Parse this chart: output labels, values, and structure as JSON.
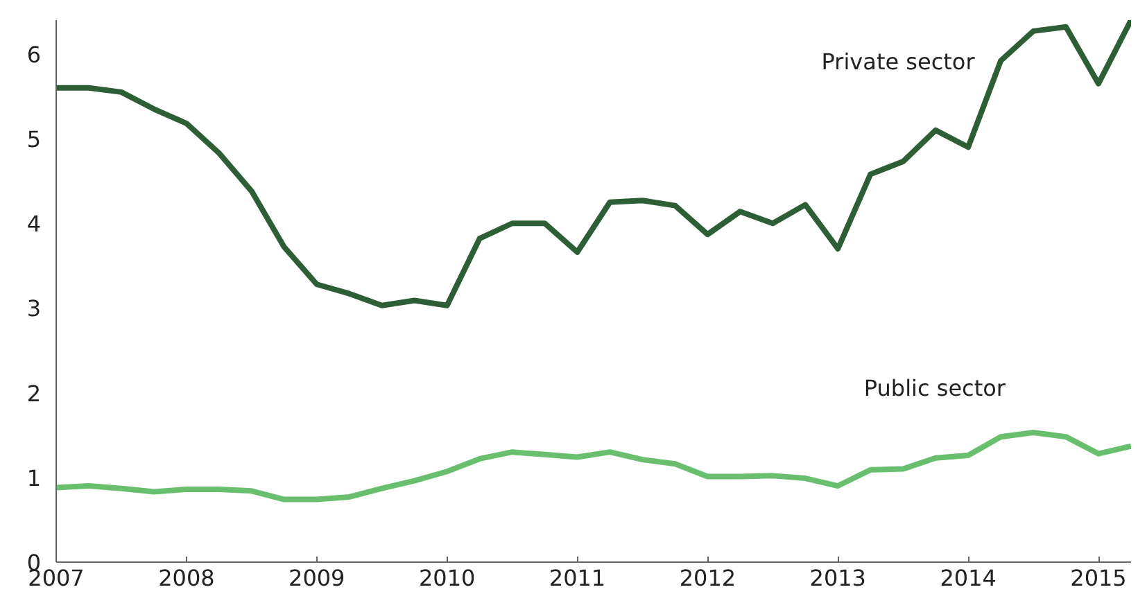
{
  "chart_data": {
    "type": "line",
    "xlim": [
      2007,
      2015.25
    ],
    "xticks": [
      2007,
      2008,
      2009,
      2010,
      2011,
      2012,
      2013,
      2014,
      2015
    ],
    "ylim": [
      0,
      6.4
    ],
    "yticks": [
      0,
      1,
      2,
      3,
      4,
      5,
      6
    ],
    "grid": false,
    "legend": false,
    "marker": "none",
    "line_style": "solid",
    "x": [
      2007,
      2007.25,
      2007.5,
      2007.75,
      2008,
      2008.25,
      2008.5,
      2008.75,
      2009,
      2009.25,
      2009.5,
      2009.75,
      2010,
      2010.25,
      2010.5,
      2010.75,
      2011,
      2011.25,
      2011.5,
      2011.75,
      2012,
      2012.25,
      2012.5,
      2012.75,
      2013,
      2013.25,
      2013.5,
      2013.75,
      2014,
      2014.25,
      2014.5,
      2014.75,
      2015,
      2015.25
    ],
    "series": [
      {
        "name": "Private sector",
        "color": "#2d5e35",
        "values": [
          5.6,
          5.6,
          5.55,
          5.35,
          5.18,
          4.83,
          4.38,
          3.72,
          3.28,
          3.17,
          3.03,
          3.09,
          3.03,
          3.82,
          4.0,
          4.0,
          3.66,
          4.25,
          4.27,
          4.21,
          3.87,
          4.14,
          4.0,
          4.22,
          3.7,
          4.58,
          4.73,
          5.1,
          4.9,
          5.92,
          6.27,
          6.32,
          5.65,
          6.4
        ]
      },
      {
        "name": "Public sector",
        "color": "#6abf6e",
        "values": [
          0.88,
          0.9,
          0.87,
          0.83,
          0.86,
          0.86,
          0.84,
          0.74,
          0.74,
          0.77,
          0.87,
          0.96,
          1.07,
          1.22,
          1.3,
          1.27,
          1.24,
          1.3,
          1.21,
          1.16,
          1.01,
          1.01,
          1.02,
          0.99,
          0.9,
          1.09,
          1.1,
          1.23,
          1.26,
          1.48,
          1.53,
          1.48,
          1.28,
          1.37
        ]
      }
    ]
  }
}
